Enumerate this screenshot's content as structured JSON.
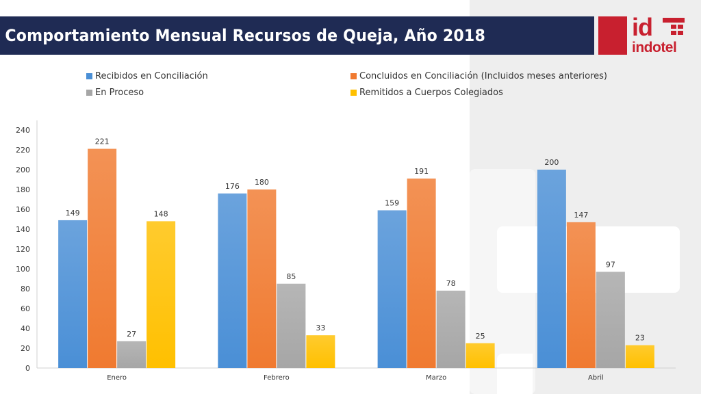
{
  "header": {
    "title": "Comportamiento Mensual Recursos de Queja, Año 2018"
  },
  "logo": {
    "mark": "id",
    "word": "indotel"
  },
  "colors": {
    "title_bar": "#1f2b54",
    "brand_red": "#c8202f"
  },
  "chart_data": {
    "type": "bar",
    "categories": [
      "Enero",
      "Febrero",
      "Marzo",
      "Abril"
    ],
    "series": [
      {
        "name": "Recibidos en Conciliación",
        "color": "#4a8fd6",
        "values": [
          149,
          176,
          159,
          200
        ]
      },
      {
        "name": "Concluidos en Conciliación (Incluidos meses anteriores)",
        "color": "#f07a30",
        "values": [
          221,
          180,
          191,
          147
        ]
      },
      {
        "name": "En Proceso",
        "color": "#a6a6a6",
        "values": [
          27,
          85,
          78,
          97
        ]
      },
      {
        "name": "Remitidos a Cuerpos Colegiados",
        "color": "#ffc000",
        "values": [
          148,
          33,
          25,
          23
        ]
      }
    ],
    "ylim": [
      0,
      240
    ],
    "yticks": [
      "0",
      "20",
      "40",
      "60",
      "80",
      "100",
      "120",
      "140",
      "160",
      "180",
      "200",
      "220",
      "240"
    ],
    "legend_position": "top",
    "grid": false,
    "data_labels": true
  }
}
